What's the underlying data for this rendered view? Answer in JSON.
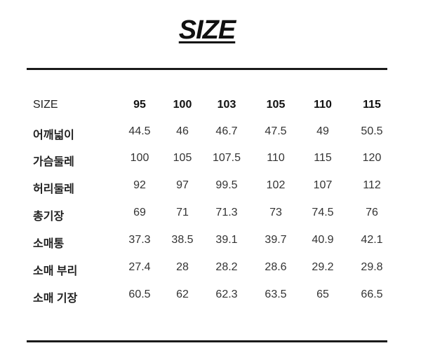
{
  "title": "SIZE",
  "table": {
    "header_label": "SIZE",
    "sizes": [
      "95",
      "100",
      "103",
      "105",
      "110",
      "115"
    ],
    "rows": [
      {
        "label": "어깨넓이",
        "values": [
          "44.5",
          "46",
          "46.7",
          "47.5",
          "49",
          "50.5"
        ]
      },
      {
        "label": "가슴둘레",
        "values": [
          "100",
          "105",
          "107.5",
          "110",
          "115",
          "120"
        ]
      },
      {
        "label": "허리둘레",
        "values": [
          "92",
          "97",
          "99.5",
          "102",
          "107",
          "112"
        ]
      },
      {
        "label": "총기장",
        "values": [
          "69",
          "71",
          "71.3",
          "73",
          "74.5",
          "76"
        ]
      },
      {
        "label": "소매통",
        "values": [
          "37.3",
          "38.5",
          "39.1",
          "39.7",
          "40.9",
          "42.1"
        ]
      },
      {
        "label": "소매 부리",
        "values": [
          "27.4",
          "28",
          "28.2",
          "28.6",
          "29.2",
          "29.8"
        ]
      },
      {
        "label": "소매 기장",
        "values": [
          "60.5",
          "62",
          "62.3",
          "63.5",
          "65",
          "66.5"
        ]
      }
    ]
  }
}
